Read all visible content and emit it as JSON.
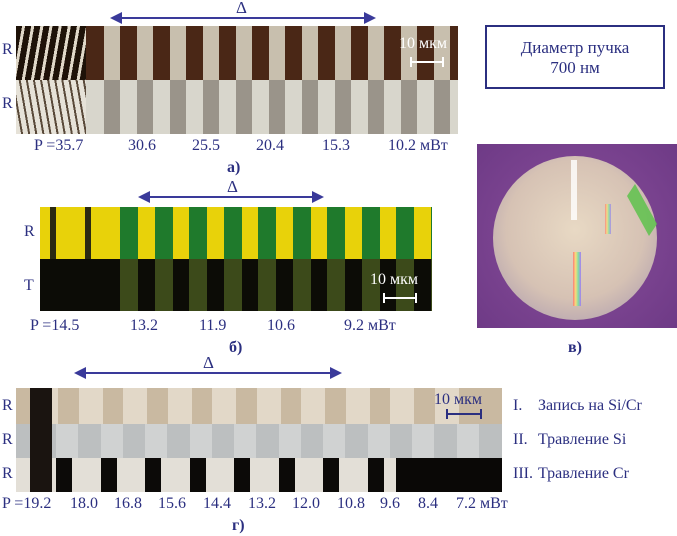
{
  "delta": "Δ",
  "panel_a": {
    "row_labels": [
      "R",
      "R"
    ],
    "scale": "10 мкм",
    "powers": [
      "P =35.7",
      "30.6",
      "25.5",
      "20.4",
      "15.3",
      "10.2 мВт"
    ],
    "caption": "а)"
  },
  "beam_box": {
    "line1": "Диаметр пучка",
    "line2": "700 нм"
  },
  "panel_b": {
    "row_labels": [
      "R",
      "T"
    ],
    "scale": "10 мкм",
    "powers": [
      "P =14.5",
      "13.2",
      "11.9",
      "10.6",
      "9.2 мВт"
    ],
    "caption": "б)"
  },
  "panel_v": {
    "caption": "в)"
  },
  "panel_g": {
    "row_labels": [
      "R",
      "R",
      "R"
    ],
    "scale": "10 мкм",
    "powers": [
      "P =19.2",
      "18.0",
      "16.8",
      "15.6",
      "14.4",
      "13.2",
      "12.0",
      "10.8",
      "9.6",
      "8.4",
      "7.2 мВт"
    ],
    "caption": "г)",
    "legend": [
      {
        "num": "I.",
        "text": "Запись на Si/Cr"
      },
      {
        "num": "II.",
        "text": "Травление Si"
      },
      {
        "num": "III.",
        "text": "Травление Cr"
      }
    ]
  },
  "colors": {
    "ink": "#2b2f80",
    "arrow": "#3a3a9a",
    "disc_bg": "#7a3f8f"
  }
}
